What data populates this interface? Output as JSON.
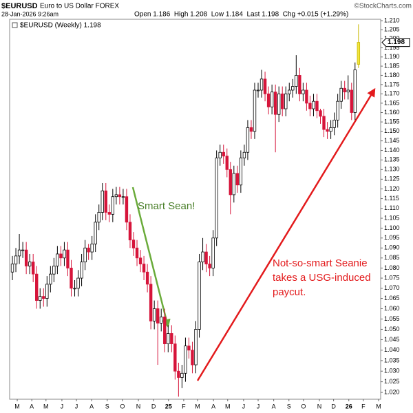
{
  "chart_data": {
    "type": "candlestick",
    "title": "$EURUSD",
    "subtitle": "Euro to US Dollar FOREX",
    "source": "©StockCharts.com",
    "date": "28-Jan-2026 9:26am",
    "summary": "Open 1.186  High 1.208  Low 1.184  Last 1.198  Chg +0.015 (+1.29%)",
    "legend": "$EURUSD (Weekly) 1.198",
    "last_label": "1.198",
    "last_value": 1.198,
    "annotations": [
      "Smart Sean!",
      "Not-so-smart Seanie",
      "takes a USG-induced",
      "paycut."
    ],
    "log_scale": true,
    "up_color": "#ffffff",
    "down_color": "#d6143a",
    "last_color": "#f2e640",
    "open": [
      1.078,
      1.082,
      1.086,
      1.089,
      1.089,
      1.081,
      1.083,
      1.077,
      1.064,
      1.066,
      1.065,
      1.072,
      1.077,
      1.081,
      1.087,
      1.085,
      1.089,
      1.08,
      1.07,
      1.07,
      1.075,
      1.083,
      1.09,
      1.088,
      1.092,
      1.103,
      1.108,
      1.119,
      1.108,
      1.107,
      1.116,
      1.117,
      1.116,
      1.116,
      1.103,
      1.094,
      1.09,
      1.085,
      1.082,
      1.078,
      1.072,
      1.054,
      1.06,
      1.053,
      1.056,
      1.043,
      1.048,
      1.043,
      1.03,
      1.027,
      1.029,
      1.042,
      1.04,
      1.033,
      1.05,
      1.083,
      1.088,
      1.082,
      1.08,
      1.095,
      1.136,
      1.139,
      1.137,
      1.13,
      1.117,
      1.128,
      1.122,
      1.136,
      1.139,
      1.152,
      1.15,
      1.172,
      1.172,
      1.178,
      1.17,
      1.163,
      1.171,
      1.159,
      1.17,
      1.162,
      1.17,
      1.172,
      1.174,
      1.18,
      1.17,
      1.172,
      1.165,
      1.162,
      1.166,
      1.161,
      1.158,
      1.151,
      1.15,
      1.152,
      1.156,
      1.166,
      1.173,
      1.171,
      1.172,
      1.16,
      1.186
    ],
    "high": [
      1.086,
      1.09,
      1.097,
      1.093,
      1.093,
      1.087,
      1.087,
      1.081,
      1.07,
      1.07,
      1.076,
      1.081,
      1.085,
      1.091,
      1.091,
      1.093,
      1.093,
      1.084,
      1.074,
      1.079,
      1.087,
      1.094,
      1.092,
      1.096,
      1.107,
      1.112,
      1.123,
      1.123,
      1.112,
      1.12,
      1.121,
      1.121,
      1.12,
      1.12,
      1.107,
      1.098,
      1.094,
      1.089,
      1.086,
      1.082,
      1.076,
      1.064,
      1.064,
      1.06,
      1.06,
      1.052,
      1.052,
      1.047,
      1.034,
      1.033,
      1.046,
      1.046,
      1.044,
      1.054,
      1.087,
      1.095,
      1.092,
      1.086,
      1.099,
      1.14,
      1.143,
      1.143,
      1.141,
      1.134,
      1.132,
      1.132,
      1.14,
      1.143,
      1.156,
      1.156,
      1.176,
      1.176,
      1.183,
      1.182,
      1.174,
      1.175,
      1.175,
      1.174,
      1.174,
      1.174,
      1.176,
      1.178,
      1.191,
      1.184,
      1.176,
      1.176,
      1.169,
      1.17,
      1.17,
      1.162,
      1.162,
      1.155,
      1.156,
      1.16,
      1.17,
      1.177,
      1.177,
      1.18,
      1.176,
      1.187,
      1.208
    ],
    "low": [
      1.074,
      1.078,
      1.082,
      1.085,
      1.077,
      1.077,
      1.073,
      1.06,
      1.06,
      1.061,
      1.061,
      1.068,
      1.073,
      1.077,
      1.081,
      1.081,
      1.076,
      1.066,
      1.066,
      1.066,
      1.071,
      1.079,
      1.084,
      1.084,
      1.088,
      1.099,
      1.104,
      1.104,
      1.103,
      1.103,
      1.112,
      1.112,
      1.112,
      1.099,
      1.09,
      1.086,
      1.081,
      1.078,
      1.074,
      1.068,
      1.05,
      1.05,
      1.033,
      1.049,
      1.039,
      1.039,
      1.039,
      1.026,
      1.018,
      1.022,
      1.025,
      1.036,
      1.029,
      1.029,
      1.046,
      1.079,
      1.078,
      1.076,
      1.076,
      1.091,
      1.132,
      1.133,
      1.126,
      1.107,
      1.113,
      1.118,
      1.118,
      1.132,
      1.135,
      1.146,
      1.146,
      1.168,
      1.168,
      1.166,
      1.159,
      1.159,
      1.139,
      1.155,
      1.158,
      1.158,
      1.166,
      1.168,
      1.17,
      1.166,
      1.166,
      1.161,
      1.158,
      1.158,
      1.157,
      1.154,
      1.147,
      1.146,
      1.146,
      1.148,
      1.152,
      1.162,
      1.167,
      1.167,
      1.156,
      1.156,
      1.184
    ],
    "close": [
      1.082,
      1.086,
      1.089,
      1.089,
      1.081,
      1.083,
      1.077,
      1.064,
      1.066,
      1.065,
      1.072,
      1.077,
      1.081,
      1.087,
      1.085,
      1.089,
      1.08,
      1.07,
      1.07,
      1.075,
      1.083,
      1.09,
      1.088,
      1.092,
      1.103,
      1.108,
      1.119,
      1.108,
      1.107,
      1.116,
      1.117,
      1.116,
      1.116,
      1.103,
      1.094,
      1.09,
      1.085,
      1.082,
      1.078,
      1.072,
      1.054,
      1.06,
      1.053,
      1.056,
      1.043,
      1.048,
      1.043,
      1.03,
      1.027,
      1.029,
      1.042,
      1.04,
      1.033,
      1.05,
      1.083,
      1.088,
      1.082,
      1.08,
      1.095,
      1.136,
      1.139,
      1.137,
      1.13,
      1.117,
      1.128,
      1.122,
      1.136,
      1.139,
      1.152,
      1.15,
      1.172,
      1.172,
      1.178,
      1.17,
      1.163,
      1.171,
      1.159,
      1.17,
      1.162,
      1.17,
      1.172,
      1.174,
      1.18,
      1.17,
      1.172,
      1.165,
      1.162,
      1.166,
      1.161,
      1.158,
      1.151,
      1.15,
      1.152,
      1.156,
      1.166,
      1.173,
      1.171,
      1.172,
      1.16,
      1.183,
      1.198
    ],
    "xlim": [
      -0.8,
      106.4
    ],
    "xticks": [
      {
        "value": 1.4,
        "label": "M"
      },
      {
        "value": 5.6,
        "label": "A"
      },
      {
        "value": 9.7,
        "label": "M"
      },
      {
        "value": 14.3,
        "label": "J"
      },
      {
        "value": 18.5,
        "label": "J"
      },
      {
        "value": 22.9,
        "label": "A"
      },
      {
        "value": 27.4,
        "label": "S"
      },
      {
        "value": 31.8,
        "label": "O"
      },
      {
        "value": 36.4,
        "label": "N"
      },
      {
        "value": 40.8,
        "label": "D"
      },
      {
        "value": 45.1,
        "label": "25"
      },
      {
        "value": 49.5,
        "label": "F"
      },
      {
        "value": 53.5,
        "label": "M"
      },
      {
        "value": 58.1,
        "label": "A"
      },
      {
        "value": 62.2,
        "label": "M"
      },
      {
        "value": 66.8,
        "label": "J"
      },
      {
        "value": 71.0,
        "label": "J"
      },
      {
        "value": 75.5,
        "label": "A"
      },
      {
        "value": 79.9,
        "label": "S"
      },
      {
        "value": 84.1,
        "label": "O"
      },
      {
        "value": 88.7,
        "label": "N"
      },
      {
        "value": 92.8,
        "label": "D"
      },
      {
        "value": 97.2,
        "label": "26"
      },
      {
        "value": 101.4,
        "label": "F"
      },
      {
        "value": 105.8,
        "label": "M"
      }
    ],
    "ylim": [
      1.0168,
      1.2108
    ],
    "yticks": [
      {
        "value": 1.02,
        "label": "1.020"
      },
      {
        "value": 1.025,
        "label": "1.025"
      },
      {
        "value": 1.03,
        "label": "1.030"
      },
      {
        "value": 1.035,
        "label": "1.035"
      },
      {
        "value": 1.04,
        "label": "1.040"
      },
      {
        "value": 1.045,
        "label": "1.045"
      },
      {
        "value": 1.05,
        "label": "1.050"
      },
      {
        "value": 1.055,
        "label": "1.055"
      },
      {
        "value": 1.06,
        "label": "1.060"
      },
      {
        "value": 1.065,
        "label": "1.065"
      },
      {
        "value": 1.07,
        "label": "1.070"
      },
      {
        "value": 1.075,
        "label": "1.075"
      },
      {
        "value": 1.08,
        "label": "1.080"
      },
      {
        "value": 1.085,
        "label": "1.085"
      },
      {
        "value": 1.09,
        "label": "1.090"
      },
      {
        "value": 1.095,
        "label": "1.095"
      },
      {
        "value": 1.1,
        "label": "1.100"
      },
      {
        "value": 1.105,
        "label": "1.105"
      },
      {
        "value": 1.11,
        "label": "1.110"
      },
      {
        "value": 1.115,
        "label": "1.115"
      },
      {
        "value": 1.12,
        "label": "1.120"
      },
      {
        "value": 1.125,
        "label": "1.125"
      },
      {
        "value": 1.13,
        "label": "1.130"
      },
      {
        "value": 1.135,
        "label": "1.135"
      },
      {
        "value": 1.14,
        "label": "1.140"
      },
      {
        "value": 1.145,
        "label": "1.145"
      },
      {
        "value": 1.15,
        "label": "1.150"
      },
      {
        "value": 1.155,
        "label": "1.155"
      },
      {
        "value": 1.16,
        "label": "1.160"
      },
      {
        "value": 1.165,
        "label": "1.165"
      },
      {
        "value": 1.17,
        "label": "1.170"
      },
      {
        "value": 1.175,
        "label": "1.175"
      },
      {
        "value": 1.18,
        "label": "1.180"
      },
      {
        "value": 1.185,
        "label": "1.185"
      },
      {
        "value": 1.19,
        "label": "1.190"
      },
      {
        "value": 1.195,
        "label": "1.195"
      },
      {
        "value": 1.2,
        "label": "1.200"
      },
      {
        "value": 1.205,
        "label": "1.205"
      },
      {
        "value": 1.21,
        "label": "1.210"
      }
    ]
  }
}
